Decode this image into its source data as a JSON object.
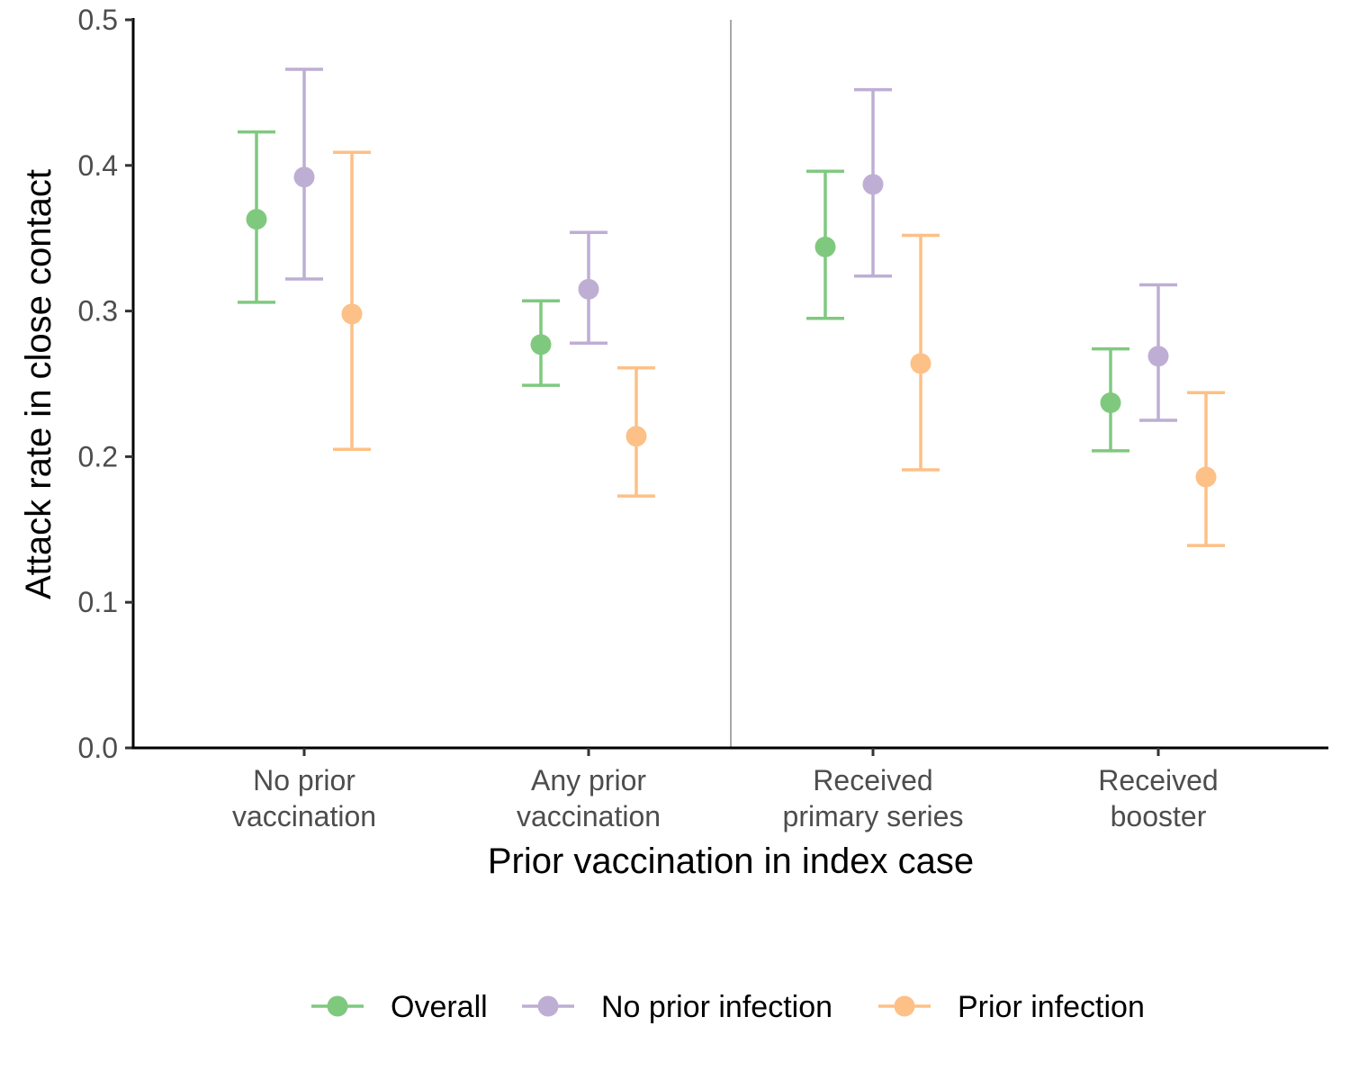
{
  "chart_data": {
    "type": "scatter",
    "subtype": "point-range with error bars",
    "title": "",
    "xlabel": "Prior vaccination in index case",
    "ylabel": "Attack rate in close contact",
    "ylim": [
      0,
      0.5
    ],
    "yticks": [
      "0.0",
      "0.1",
      "0.2",
      "0.3",
      "0.4",
      "0.5"
    ],
    "categories": [
      [
        "No prior",
        "vaccination"
      ],
      [
        "Any prior",
        "vaccination"
      ],
      [
        "Received",
        "primary series"
      ],
      [
        "Received",
        "booster"
      ]
    ],
    "divider_between_categories": [
      2,
      3
    ],
    "legend_position": "bottom",
    "grid": false,
    "series": [
      {
        "name": "Overall",
        "color": "#7fc97f",
        "values": [
          0.363,
          0.277,
          0.344,
          0.237
        ],
        "lower": [
          0.306,
          0.249,
          0.295,
          0.204
        ],
        "upper": [
          0.423,
          0.307,
          0.396,
          0.274
        ]
      },
      {
        "name": "No prior infection",
        "color": "#beaed4",
        "values": [
          0.392,
          0.315,
          0.387,
          0.269
        ],
        "lower": [
          0.322,
          0.278,
          0.324,
          0.225
        ],
        "upper": [
          0.466,
          0.354,
          0.452,
          0.318
        ]
      },
      {
        "name": "Prior infection",
        "color": "#fdc086",
        "values": [
          0.298,
          0.214,
          0.264,
          0.186
        ],
        "lower": [
          0.205,
          0.173,
          0.191,
          0.139
        ],
        "upper": [
          0.409,
          0.261,
          0.352,
          0.244
        ]
      }
    ]
  }
}
